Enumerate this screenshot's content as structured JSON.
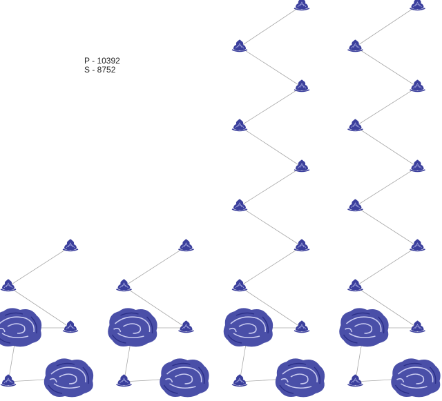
{
  "label": {
    "line1": "P - 10392",
    "line2": "S - 8752"
  }
}
